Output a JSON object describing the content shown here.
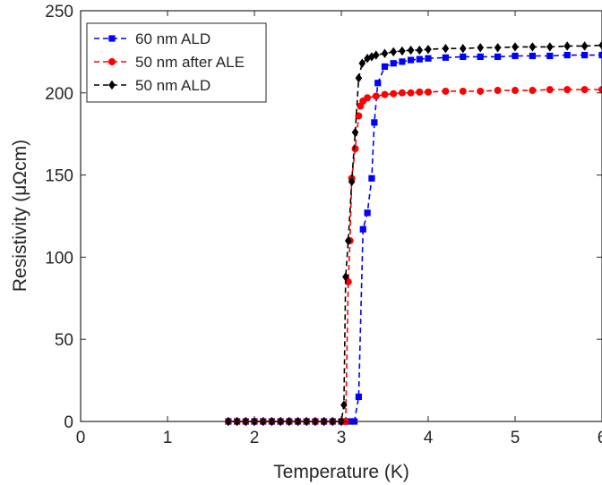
{
  "chart_data": {
    "type": "line",
    "xlabel": "Temperature (K)",
    "ylabel": "Resistivity (μΩcm)",
    "xlim": [
      0,
      6
    ],
    "ylim": [
      0,
      250
    ],
    "xticks": [
      "0",
      "1",
      "2",
      "3",
      "4",
      "5",
      "6"
    ],
    "yticks": [
      "0",
      "50",
      "100",
      "150",
      "200",
      "250"
    ],
    "grid": false,
    "legend_position": "top-left",
    "series": [
      {
        "name": "60 nm ALD",
        "color": "#0000ff",
        "marker": "square",
        "line_style": "dashed",
        "x": [
          1.7,
          1.8,
          1.9,
          2.0,
          2.1,
          2.2,
          2.3,
          2.4,
          2.5,
          2.6,
          2.7,
          2.8,
          2.9,
          3.0,
          3.05,
          3.1,
          3.15,
          3.2,
          3.25,
          3.3,
          3.35,
          3.38,
          3.42,
          3.5,
          3.6,
          3.7,
          3.8,
          3.9,
          4.0,
          4.2,
          4.4,
          4.6,
          4.8,
          5.0,
          5.2,
          5.4,
          5.6,
          5.8,
          6.0
        ],
        "y": [
          0,
          0,
          0,
          0,
          0,
          0,
          0,
          0,
          0,
          0,
          0,
          0,
          0,
          0,
          0,
          0,
          0,
          15,
          117,
          127,
          148,
          182,
          206,
          216,
          218,
          219,
          220,
          220.5,
          221,
          221.5,
          222,
          222,
          222,
          222.5,
          222.5,
          222.5,
          223,
          223,
          223
        ]
      },
      {
        "name": "50 nm after ALE",
        "color": "#ff0000",
        "marker": "circle",
        "line_style": "dashed",
        "x": [
          1.7,
          1.8,
          1.9,
          2.0,
          2.1,
          2.2,
          2.3,
          2.4,
          2.5,
          2.6,
          2.7,
          2.8,
          2.9,
          3.0,
          3.05,
          3.08,
          3.1,
          3.12,
          3.16,
          3.2,
          3.22,
          3.25,
          3.3,
          3.4,
          3.5,
          3.6,
          3.7,
          3.8,
          3.9,
          4.0,
          4.2,
          4.4,
          4.6,
          4.8,
          5.0,
          5.2,
          5.4,
          5.6,
          5.8,
          6.0
        ],
        "y": [
          0,
          0,
          0,
          0,
          0,
          0,
          0,
          0,
          0,
          0,
          0,
          0,
          0,
          0,
          0,
          85,
          110,
          148,
          166,
          186,
          192,
          195,
          197,
          198,
          199,
          199.5,
          200,
          200,
          200.5,
          200.5,
          201,
          201,
          201,
          201.5,
          201.5,
          201.5,
          202,
          202,
          202,
          202
        ]
      },
      {
        "name": "50 nm ALD",
        "color": "#000000",
        "marker": "diamond",
        "line_style": "dashed",
        "x": [
          1.7,
          1.8,
          1.9,
          2.0,
          2.1,
          2.2,
          2.3,
          2.4,
          2.5,
          2.6,
          2.7,
          2.8,
          2.9,
          3.0,
          3.03,
          3.05,
          3.08,
          3.12,
          3.16,
          3.2,
          3.24,
          3.3,
          3.35,
          3.4,
          3.5,
          3.6,
          3.7,
          3.8,
          3.9,
          4.0,
          4.2,
          4.4,
          4.6,
          4.8,
          5.0,
          5.2,
          5.4,
          5.6,
          5.8,
          6.0
        ],
        "y": [
          0,
          0,
          0,
          0,
          0,
          0,
          0,
          0,
          0,
          0,
          0,
          0,
          0,
          0,
          10,
          88,
          110,
          146,
          176,
          209,
          218,
          221,
          222,
          223,
          224,
          225,
          225.5,
          226,
          226,
          226.5,
          227,
          227,
          227.5,
          227.5,
          228,
          228,
          228,
          228.5,
          228.5,
          229
        ]
      }
    ]
  }
}
